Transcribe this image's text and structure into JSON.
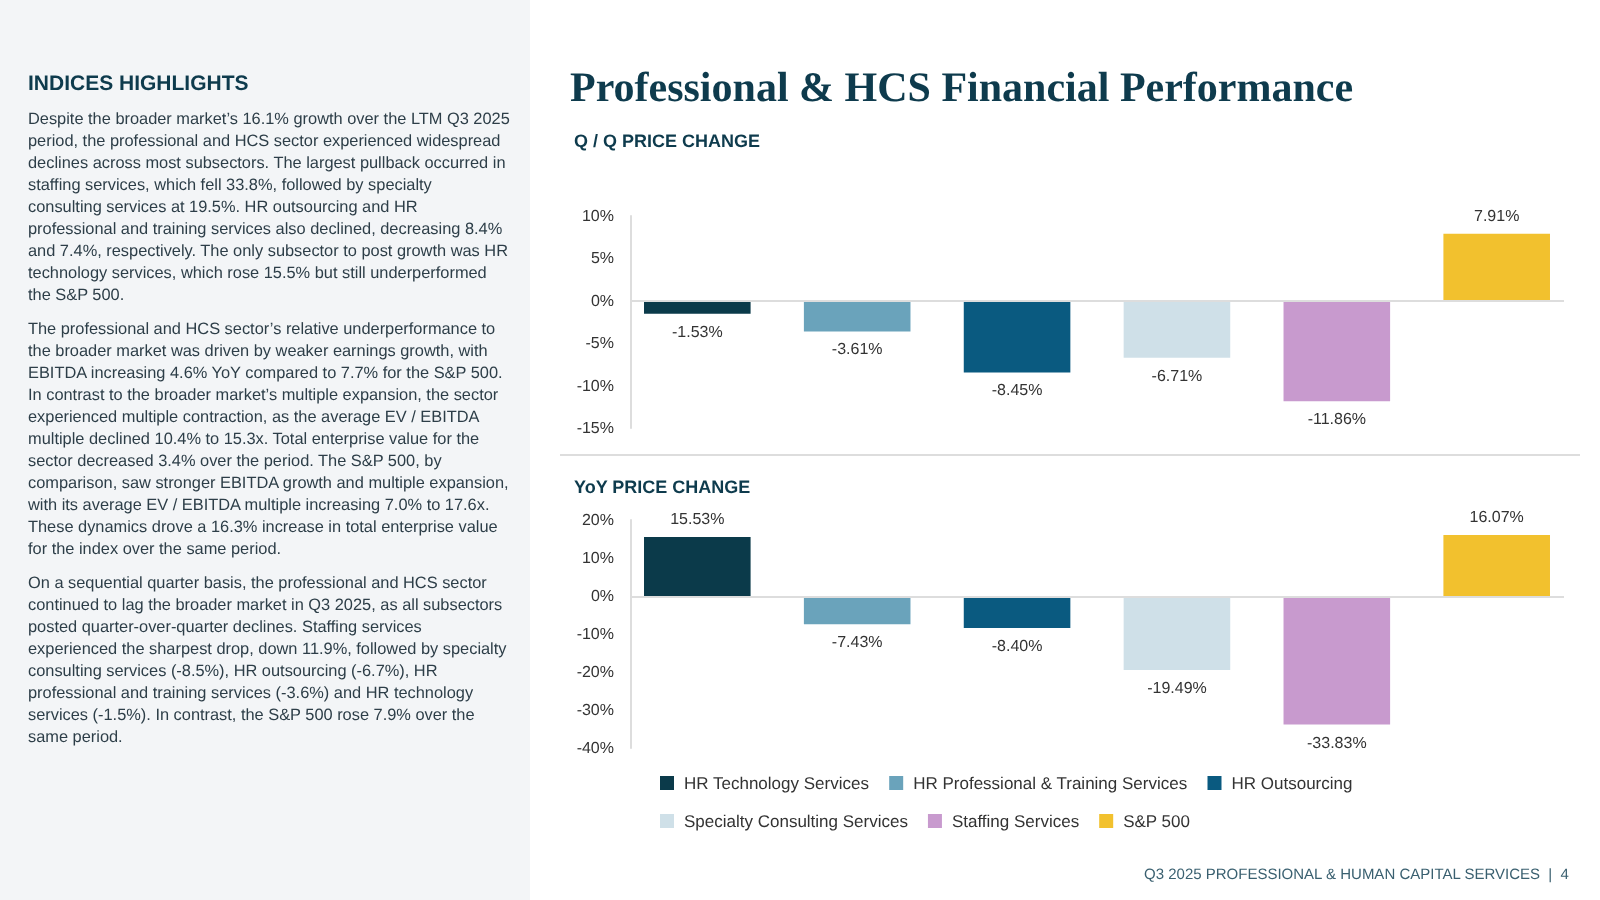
{
  "chart_data": [
    {
      "type": "other",
      "title": "INDICES HIGHLIGHTS",
      "annotations": [
        "Despite the broader market’s 16.1% growth over the LTM Q3 2025 period, the professional and HCS sector experienced widespread declines across most subsectors. The largest pullback occurred in staffing services, which fell 33.8%, followed by specialty consulting services at 19.5%. HR outsourcing and HR professional and training services also declined, decreasing 8.4% and 7.4%, respectively. The only subsector to post growth was HR technology services, which rose 15.5% but still underperformed the S&P 500.",
        "The professional and HCS sector’s relative underperformance to the broader market was driven by weaker earnings growth, with EBITDA increasing 4.6% YoY compared to 7.7% for the S&P 500. In contrast to the broader market’s multiple expansion, the sector experienced multiple contraction, as the average EV / EBITDA multiple declined 10.4% to 15.3x. Total enterprise value for the sector decreased 3.4% over the period. The S&P 500, by comparison, saw stronger EBITDA growth and multiple expansion, with its average EV / EBITDA multiple increasing 7.0% to 17.6x. These dynamics drove a 16.3% increase in total enterprise value for the index over the same period.",
        "On a sequential quarter basis, the professional and HCS sector continued to lag the broader market in Q3 2025, as all subsectors posted quarter-over-quarter declines. Staffing services experienced the sharpest drop, down 11.9%, followed by specialty consulting services (-8.5%), HR outsourcing (-6.7%), HR professional and training services (-3.6%) and HR technology services (-1.5%). In contrast, the S&P 500 rose 7.9% over the same period."
      ]
    },
    {
      "type": "bar",
      "title": "Professional & HCS Financial Performance",
      "subtitle": "Q / Q PRICE CHANGE",
      "categories": [
        null
      ],
      "legend": false,
      "grid": false,
      "ref_lines": [
        {
          "axis": "y",
          "value": 0,
          "color": "#dddddd"
        }
      ],
      "ylim": [
        -15,
        10
      ],
      "yticks": [
        {
          "value": -15,
          "label": "-15%"
        },
        {
          "value": -10,
          "label": "-10%"
        },
        {
          "value": -5,
          "label": "-5%"
        },
        {
          "value": 0,
          "label": "0%"
        },
        {
          "value": 5,
          "label": "5%"
        },
        {
          "value": 10,
          "label": "10%"
        }
      ],
      "series": [
        {
          "color": "#0b3a4a",
          "values": [
            -1.53
          ],
          "value_labels": [
            "-1.53%"
          ]
        },
        {
          "color": "#6aa3bb",
          "values": [
            -3.61
          ],
          "value_labels": [
            "-3.61%"
          ]
        },
        {
          "color": "#0a5a80",
          "values": [
            -8.45
          ],
          "value_labels": [
            "-8.45%"
          ]
        },
        {
          "color": "#cfe0e8",
          "values": [
            -6.71
          ],
          "value_labels": [
            "-6.71%"
          ]
        },
        {
          "color": "#c89ace",
          "values": [
            -11.86
          ],
          "value_labels": [
            "-11.86%"
          ]
        },
        {
          "color": "#f2c12e",
          "values": [
            7.91
          ],
          "value_labels": [
            "7.91%"
          ]
        }
      ]
    },
    {
      "type": "bar",
      "title": "YoY PRICE CHANGE",
      "categories": [
        null
      ],
      "legend": "bottom",
      "grid": false,
      "ref_lines": [
        {
          "axis": "y",
          "value": 0,
          "color": "#dddddd"
        }
      ],
      "ylim": [
        -40,
        20
      ],
      "yticks": [
        {
          "value": -40,
          "label": "-40%"
        },
        {
          "value": -30,
          "label": "-30%"
        },
        {
          "value": -20,
          "label": "-20%"
        },
        {
          "value": -10,
          "label": "-10%"
        },
        {
          "value": 0,
          "label": "0%"
        },
        {
          "value": 10,
          "label": "10%"
        },
        {
          "value": 20,
          "label": "20%"
        }
      ],
      "annotations": [
        "Q3 2025 PROFESSIONAL & HUMAN CAPITAL SERVICES  |  4"
      ],
      "series": [
        {
          "name": "HR Technology Services",
          "color": "#0b3a4a",
          "values": [
            15.53
          ],
          "value_labels": [
            "15.53%"
          ]
        },
        {
          "name": "HR Professional & Training Services",
          "color": "#6aa3bb",
          "values": [
            -7.43
          ],
          "value_labels": [
            "-7.43%"
          ]
        },
        {
          "name": "HR Outsourcing",
          "color": "#0a5a80",
          "values": [
            -8.4
          ],
          "value_labels": [
            "-8.40%"
          ]
        },
        {
          "name": "Specialty Consulting Services",
          "color": "#cfe0e8",
          "values": [
            -19.49
          ],
          "value_labels": [
            "-19.49%"
          ]
        },
        {
          "name": "Staffing Services",
          "color": "#c89ace",
          "values": [
            -33.83
          ],
          "value_labels": [
            "-33.83%"
          ]
        },
        {
          "name": "S&P 500",
          "color": "#f2c12e",
          "values": [
            16.07
          ],
          "value_labels": [
            "16.07%"
          ]
        }
      ]
    }
  ]
}
